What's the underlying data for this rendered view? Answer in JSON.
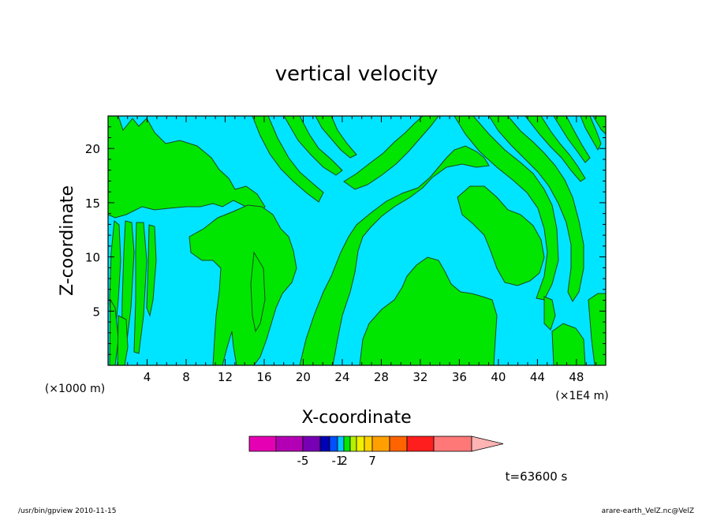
{
  "chart_data": {
    "type": "heatmap",
    "title": "vertical velocity",
    "xlabel": "X-coordinate",
    "ylabel": "Z-coordinate",
    "x_scale_note_left": "(×1000 m)",
    "x_scale_note_right": "(×1E4 m)",
    "xlim": [
      0,
      51
    ],
    "ylim": [
      0,
      23
    ],
    "x_ticks": [
      4,
      8,
      12,
      16,
      20,
      24,
      28,
      32,
      36,
      40,
      44,
      48
    ],
    "y_ticks": [
      5,
      10,
      15,
      20
    ],
    "field_colors": {
      "negative": "#00e5ff",
      "positive": "#00e600",
      "contour": "#1a4a1a"
    },
    "colorbar": {
      "colors": [
        "#e600b4",
        "#b400b4",
        "#7800b4",
        "#0000b4",
        "#0050ff",
        "#00c8ff",
        "#00e600",
        "#b4f000",
        "#f0f000",
        "#ffd200",
        "#ffa000",
        "#ff6400",
        "#ff1e1e",
        "#ff7878",
        "#ffb4b4"
      ],
      "tick_labels": [
        "-5",
        "-1",
        "2",
        "7"
      ],
      "extends": "max"
    },
    "time_label": "t=63600 s"
  },
  "footer": {
    "left": "/usr/bin/gpview   2010-11-15",
    "right": "arare-earth_VelZ.nc@VelZ"
  }
}
